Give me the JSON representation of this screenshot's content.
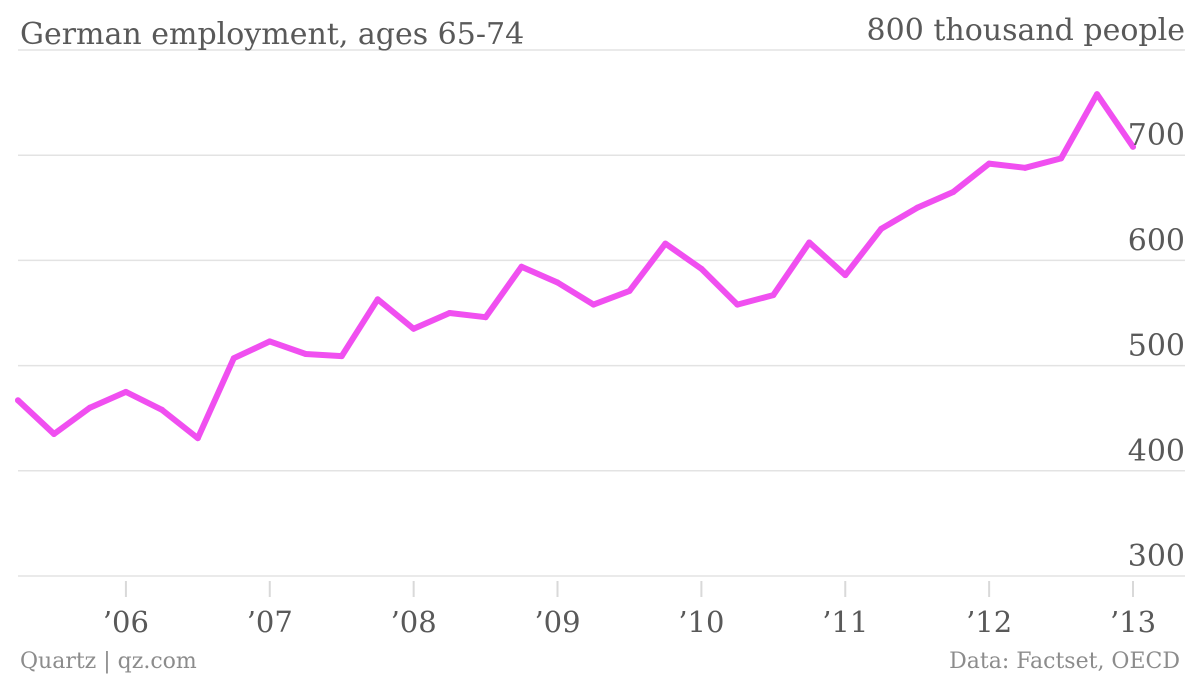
{
  "header": {
    "title": "German employment, ages 65-74"
  },
  "footer": {
    "source_left": "Quartz | qz.com",
    "source_right": "Data: Factset, OECD"
  },
  "chart_data": {
    "type": "line",
    "title": "German employment, ages 65-74",
    "xlabel": "",
    "ylabel": "",
    "ylim": [
      300,
      800
    ],
    "yticks": [
      300,
      400,
      500,
      600,
      700,
      800
    ],
    "ytick_labels": [
      "300",
      "400",
      "500",
      "600",
      "700",
      "800 thousand people"
    ],
    "xlim": [
      2005.25,
      2013.0
    ],
    "xticks": [
      2006,
      2007,
      2008,
      2009,
      2010,
      2011,
      2012,
      2013
    ],
    "xtick_labels": [
      "’06",
      "’07",
      "’08",
      "’09",
      "’10",
      "’11",
      "’12",
      "’13"
    ],
    "grid": true,
    "colors": {
      "series": "#f04ff0"
    },
    "series": [
      {
        "x": [
          2005.25,
          2005.5,
          2005.75,
          2006.0,
          2006.25,
          2006.5,
          2006.75,
          2007.0,
          2007.25,
          2007.5,
          2007.75,
          2008.0,
          2008.25,
          2008.5,
          2008.75,
          2009.0,
          2009.25,
          2009.5,
          2009.75,
          2010.0,
          2010.25,
          2010.5,
          2010.75,
          2011.0,
          2011.25,
          2011.5,
          2011.75,
          2012.0,
          2012.25,
          2012.5,
          2012.75,
          2013.0
        ],
        "values": [
          467,
          435,
          460,
          475,
          458,
          431,
          507,
          523,
          511,
          509,
          563,
          535,
          550,
          546,
          594,
          579,
          558,
          571,
          616,
          592,
          558,
          567,
          617,
          586,
          630,
          650,
          665,
          692,
          688,
          697,
          758,
          708
        ]
      }
    ]
  }
}
